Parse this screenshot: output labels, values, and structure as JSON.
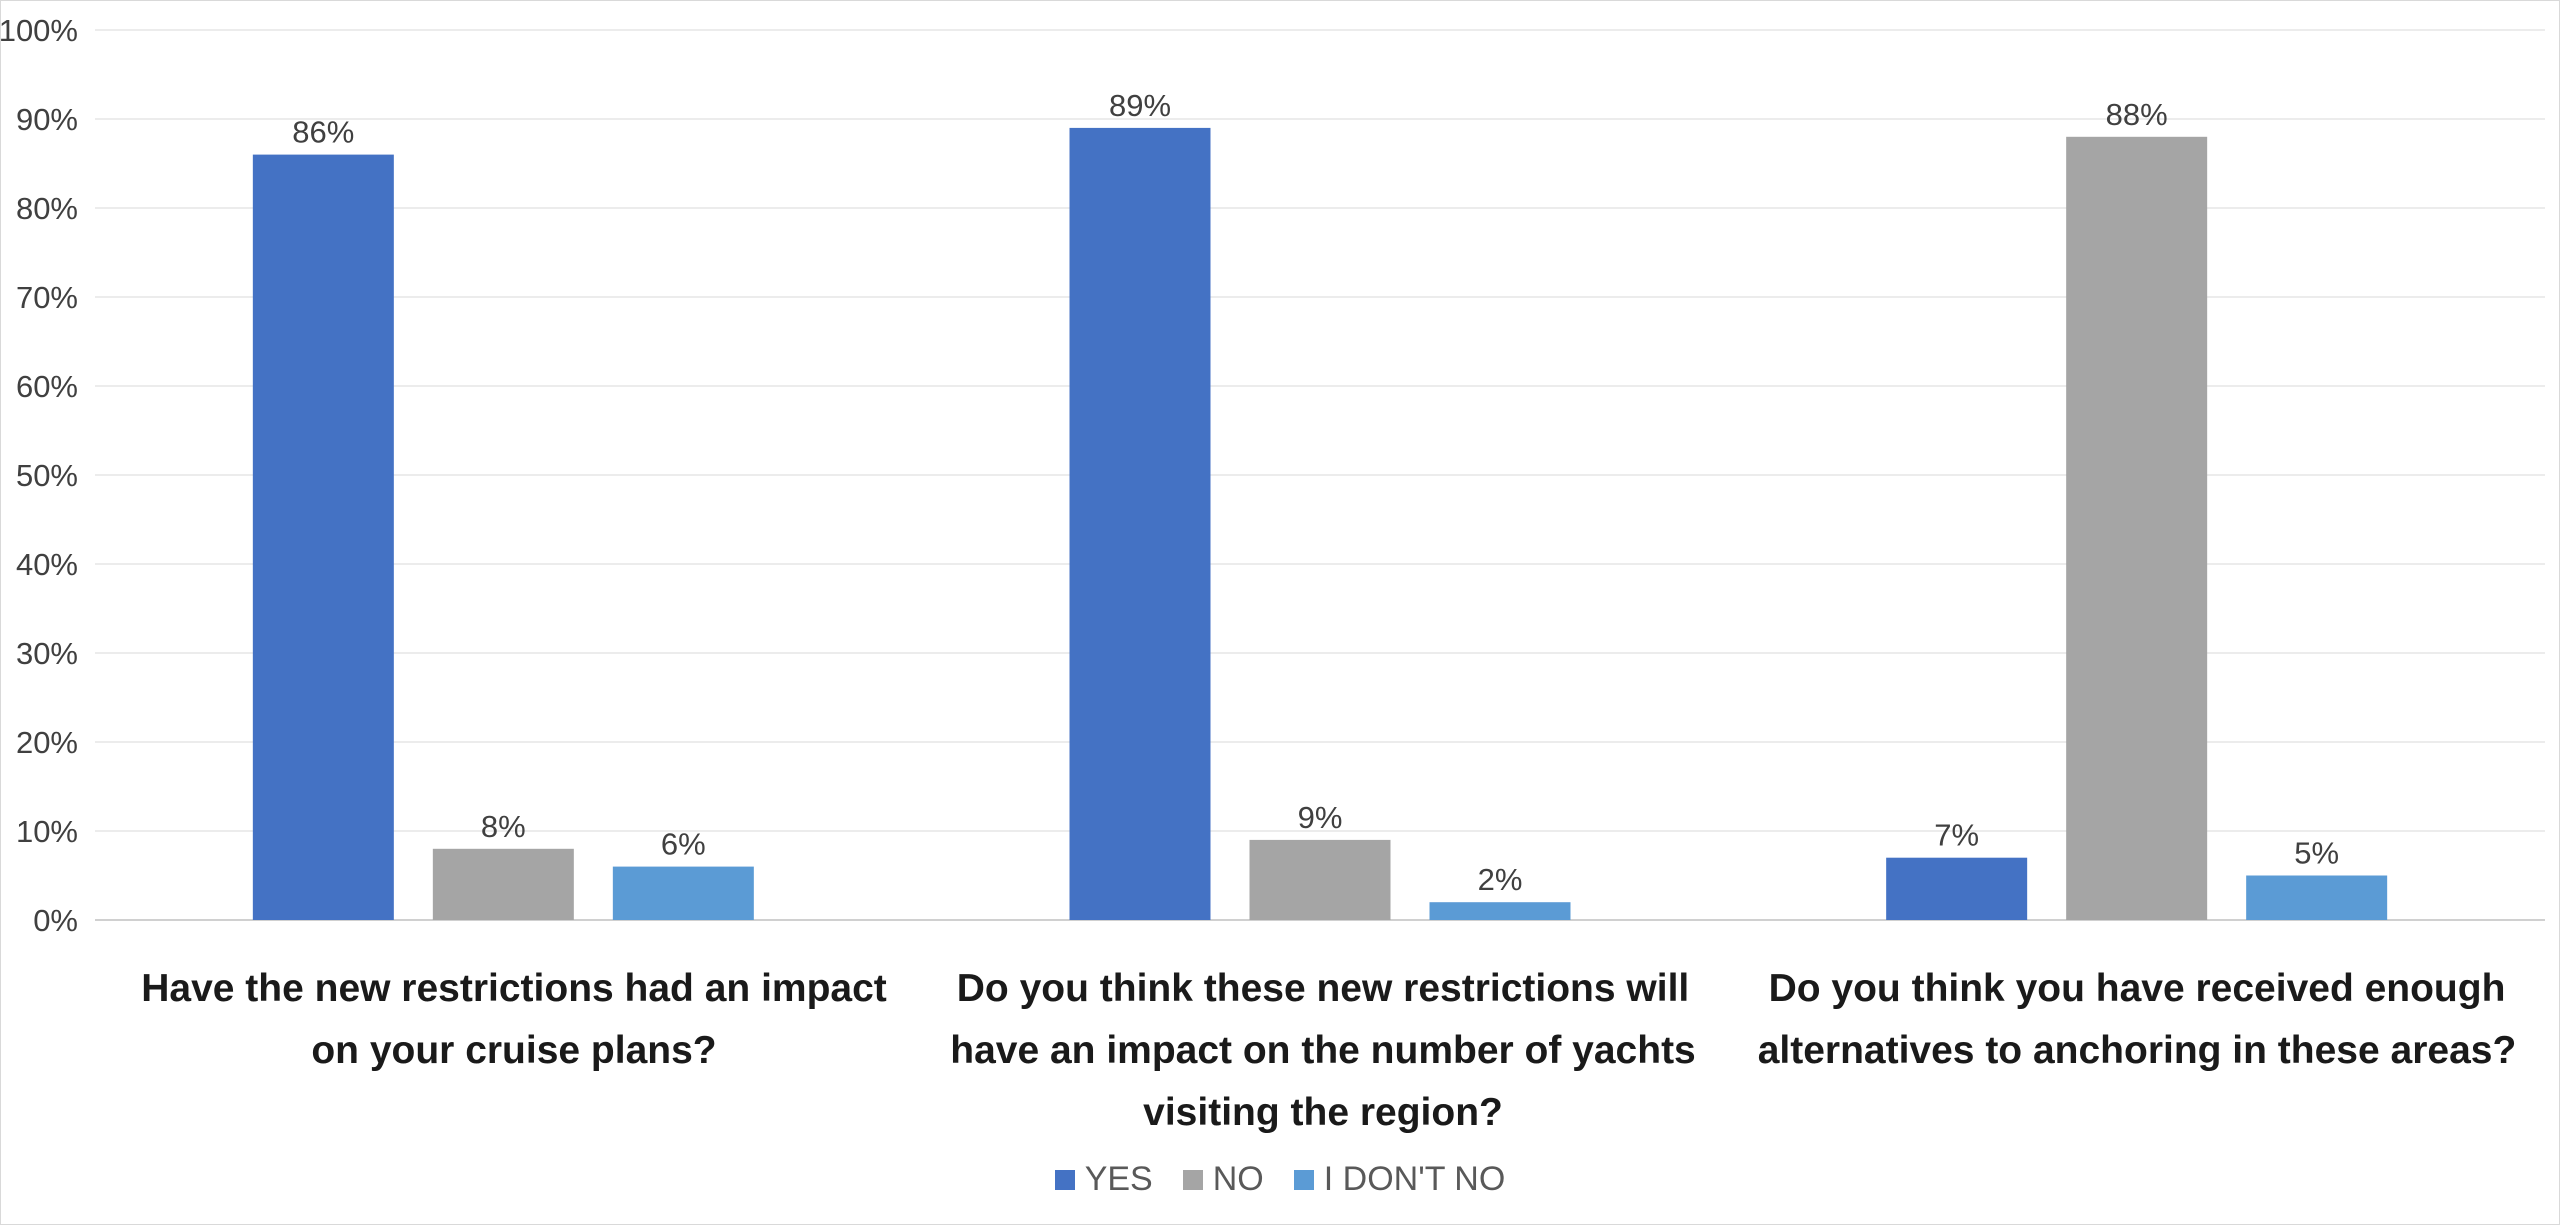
{
  "chart_data": {
    "type": "bar",
    "categories": [
      "Have the new restrictions had an impact on your cruise plans?",
      "Do you think these new restrictions will have an impact on the number of yachts visiting the region?",
      "Do you think you have received enough alternatives to anchoring in these areas?"
    ],
    "series": [
      {
        "name": "YES",
        "color": "#4472c4",
        "values": [
          86,
          89,
          7
        ]
      },
      {
        "name": "NO",
        "color": "#a5a5a5",
        "values": [
          8,
          9,
          88
        ]
      },
      {
        "name": "I DON'T NO",
        "color": "#5b9bd5",
        "values": [
          6,
          2,
          5
        ]
      }
    ],
    "data_labels": [
      [
        "86%",
        "89%",
        "7%"
      ],
      [
        "8%",
        "9%",
        "88%"
      ],
      [
        "6%",
        "2%",
        "5%"
      ]
    ],
    "y_ticks": [
      "0%",
      "10%",
      "20%",
      "30%",
      "40%",
      "50%",
      "60%",
      "70%",
      "80%",
      "90%",
      "100%"
    ],
    "ylim": [
      0,
      100
    ],
    "title": "",
    "xlabel": "",
    "ylabel": "",
    "grid": true,
    "legend_position": "bottom"
  }
}
